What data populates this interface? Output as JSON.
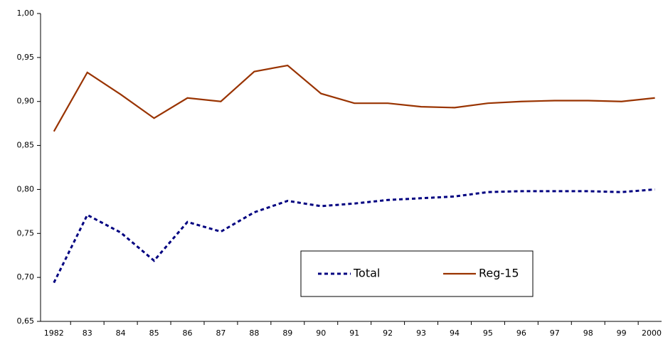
{
  "chart_data": {
    "type": "line",
    "categories": [
      "1982",
      "83",
      "84",
      "85",
      "86",
      "87",
      "88",
      "89",
      "90",
      "91",
      "92",
      "93",
      "94",
      "95",
      "96",
      "97",
      "98",
      "99",
      "2000"
    ],
    "series": [
      {
        "name": "Total",
        "color": "#000080",
        "style": "dashed",
        "values": [
          0.694,
          0.771,
          0.751,
          0.719,
          0.763,
          0.752,
          0.774,
          0.787,
          0.781,
          0.784,
          0.788,
          0.79,
          0.792,
          0.797,
          0.798,
          0.798,
          0.798,
          0.797,
          0.8
        ]
      },
      {
        "name": "Reg-15",
        "color": "#993300",
        "style": "solid",
        "values": [
          0.866,
          0.933,
          0.908,
          0.881,
          0.904,
          0.9,
          0.934,
          0.941,
          0.909,
          0.898,
          0.898,
          0.894,
          0.893,
          0.898,
          0.9,
          0.901,
          0.901,
          0.9,
          0.904
        ]
      }
    ],
    "ylim": [
      0.65,
      1.0
    ],
    "yticks": [
      {
        "value": 0.65,
        "label": "0,65"
      },
      {
        "value": 0.7,
        "label": "0,70"
      },
      {
        "value": 0.75,
        "label": "0,75"
      },
      {
        "value": 0.8,
        "label": "0,80"
      },
      {
        "value": 0.85,
        "label": "0,85"
      },
      {
        "value": 0.9,
        "label": "0,90"
      },
      {
        "value": 0.95,
        "label": "0,95"
      },
      {
        "value": 1.0,
        "label": "1,00"
      }
    ],
    "grid": false,
    "legend": "lower center"
  }
}
